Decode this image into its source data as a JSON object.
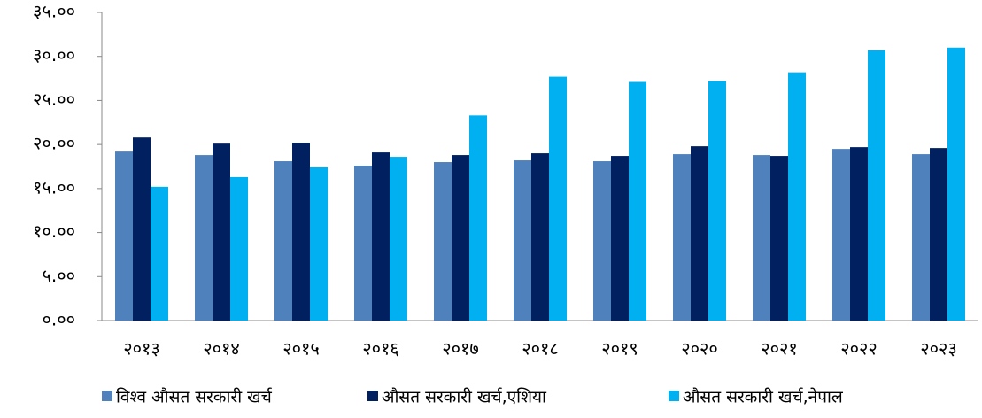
{
  "chart_data": {
    "type": "bar",
    "categories": [
      "२०१३",
      "२०१४",
      "२०१५",
      "२०१६",
      "२०१७",
      "२०१८",
      "२०१९",
      "२०२०",
      "२०२१",
      "२०२२",
      "२०२३"
    ],
    "series": [
      {
        "name": "विश्व औसत सरकारी खर्च",
        "color": "#4f81bd",
        "values": [
          19.2,
          18.8,
          18.1,
          17.6,
          18.0,
          18.2,
          18.1,
          18.9,
          18.8,
          19.5,
          18.9
        ]
      },
      {
        "name": "औसत सरकारी खर्च,एशिया",
        "color": "#002060",
        "values": [
          20.8,
          20.1,
          20.2,
          19.1,
          18.8,
          19.0,
          18.7,
          19.8,
          18.7,
          19.7,
          19.6
        ]
      },
      {
        "name": "औसत सरकारी खर्च,नेपाल",
        "color": "#00b0f0",
        "values": [
          15.2,
          16.3,
          17.4,
          18.6,
          23.3,
          27.7,
          27.1,
          27.2,
          28.2,
          30.7,
          31.0
        ]
      }
    ],
    "ylim": [
      0,
      35
    ],
    "yticks": [
      {
        "value": 0,
        "label": "०.००"
      },
      {
        "value": 5,
        "label": "५.००"
      },
      {
        "value": 10,
        "label": "१०.००"
      },
      {
        "value": 15,
        "label": "१५.००"
      },
      {
        "value": 20,
        "label": "२०.००"
      },
      {
        "value": 25,
        "label": "२५.००"
      },
      {
        "value": 30,
        "label": "३०.००"
      },
      {
        "value": 35,
        "label": "३५.००"
      }
    ],
    "grid": false,
    "legend": "bottom"
  }
}
